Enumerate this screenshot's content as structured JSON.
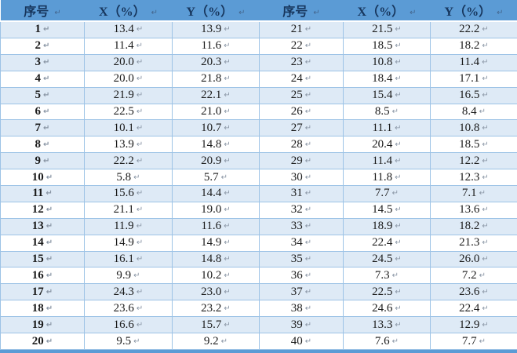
{
  "colors": {
    "header_bg": "#5B9BD5",
    "header_text": "#17365D",
    "row_shaded_bg": "#DEEAF6",
    "row_white_bg": "#FFFFFF",
    "grid_border": "#9DC3E6",
    "data_text": "#1A1A1A",
    "mark_color": "#8A96A5",
    "header_mark_color": "#44678F"
  },
  "table": {
    "cell_mark": "↵",
    "headers": [
      "序号",
      "X（%）",
      "Y（%）",
      "序号",
      "X（%）",
      "Y（%）"
    ],
    "rows": [
      [
        "1",
        "13.4",
        "13.9",
        "21",
        "21.5",
        "22.2"
      ],
      [
        "2",
        "11.4",
        "11.6",
        "22",
        "18.5",
        "18.2"
      ],
      [
        "3",
        "20.0",
        "20.3",
        "23",
        "10.8",
        "11.4"
      ],
      [
        "4",
        "20.0",
        "21.8",
        "24",
        "18.4",
        "17.1"
      ],
      [
        "5",
        "21.9",
        "22.1",
        "25",
        "15.4",
        "16.5"
      ],
      [
        "6",
        "22.5",
        "21.0",
        "26",
        "8.5",
        "8.4"
      ],
      [
        "7",
        "10.1",
        "10.7",
        "27",
        "11.1",
        "10.8"
      ],
      [
        "8",
        "13.9",
        "14.8",
        "28",
        "20.4",
        "18.5"
      ],
      [
        "9",
        "22.2",
        "20.9",
        "29",
        "11.4",
        "12.2"
      ],
      [
        "10",
        "5.8",
        "5.7",
        "30",
        "11.8",
        "12.3"
      ],
      [
        "11",
        "15.6",
        "14.4",
        "31",
        "7.7",
        "7.1"
      ],
      [
        "12",
        "21.1",
        "19.0",
        "32",
        "14.5",
        "13.6"
      ],
      [
        "13",
        "11.9",
        "11.6",
        "33",
        "18.9",
        "18.2"
      ],
      [
        "14",
        "14.9",
        "14.9",
        "34",
        "22.4",
        "21.3"
      ],
      [
        "15",
        "16.1",
        "14.8",
        "35",
        "24.5",
        "26.0"
      ],
      [
        "16",
        "9.9",
        "10.2",
        "36",
        "7.3",
        "7.2"
      ],
      [
        "17",
        "24.3",
        "23.0",
        "37",
        "22.5",
        "23.6"
      ],
      [
        "18",
        "23.6",
        "23.2",
        "38",
        "24.6",
        "22.4"
      ],
      [
        "19",
        "16.6",
        "15.7",
        "39",
        "13.3",
        "12.9"
      ],
      [
        "20",
        "9.5",
        "9.2",
        "40",
        "7.6",
        "7.7"
      ]
    ]
  }
}
